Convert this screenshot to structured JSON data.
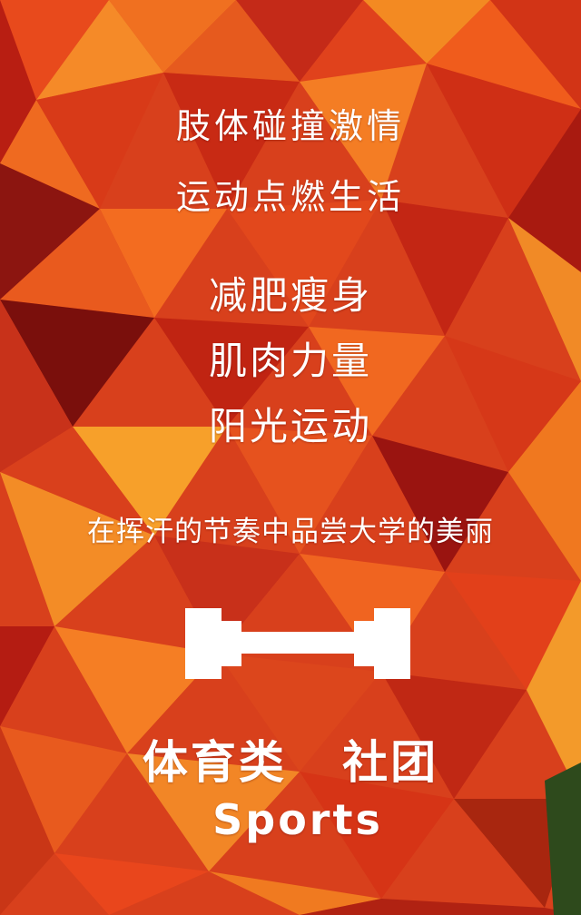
{
  "poster": {
    "slogan_lines": [
      "肢体碰撞激情",
      "运动点燃生活"
    ],
    "benefits": [
      "减肥瘦身",
      "肌肉力量",
      "阳光运动"
    ],
    "tagline": "在挥汗的节奏中品尝大学的美丽",
    "club_category": "体育类",
    "club_type": "社团",
    "club_english": "Sports",
    "icon": "dumbbell-icon",
    "colors": {
      "background": "#d8401c",
      "text": "#ffffff",
      "accent_orange": "#f07a1c",
      "accent_dark": "#8a1010"
    }
  }
}
